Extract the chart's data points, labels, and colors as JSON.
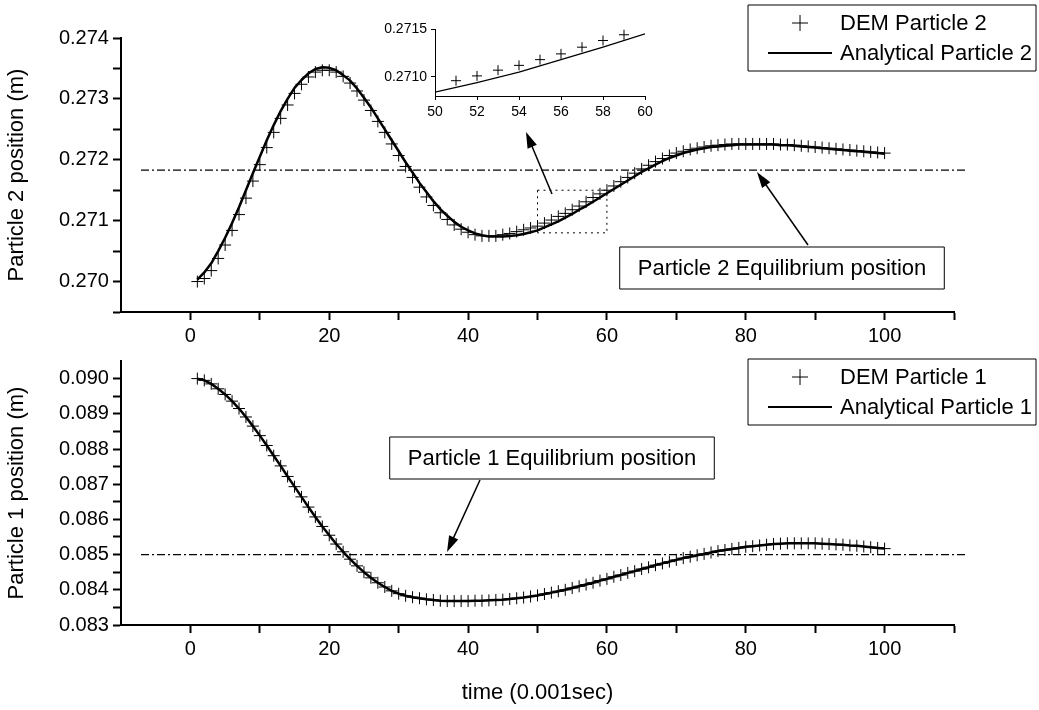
{
  "chart_data": [
    {
      "type": "scatter",
      "ylabel": "Particle 2 position (m)",
      "legend": "top right",
      "x": [
        1,
        2,
        3,
        4,
        5,
        6,
        7,
        8,
        9,
        10,
        11,
        12,
        13,
        14,
        15,
        16,
        17,
        18,
        19,
        20,
        21,
        22,
        23,
        24,
        25,
        26,
        27,
        28,
        29,
        30,
        31,
        32,
        33,
        34,
        35,
        36,
        37,
        38,
        39,
        40,
        41,
        42,
        43,
        44,
        45,
        46,
        47,
        48,
        49,
        50,
        51,
        52,
        53,
        54,
        55,
        56,
        57,
        58,
        59,
        60,
        61,
        62,
        63,
        64,
        65,
        66,
        67,
        68,
        69,
        70,
        71,
        72,
        73,
        74,
        75,
        76,
        77,
        78,
        79,
        80,
        81,
        82,
        83,
        84,
        85,
        86,
        87,
        88,
        89,
        90,
        91,
        92,
        93,
        94,
        95,
        96,
        97,
        98,
        99,
        100
      ],
      "xlim": [
        -10,
        110
      ],
      "xticks": [
        0,
        {
          "value": 10,
          "label": null
        },
        20,
        {
          "value": 30,
          "label": null
        },
        40,
        {
          "value": 50,
          "label": null
        },
        60,
        {
          "value": 70,
          "label": null
        },
        80,
        {
          "value": 90,
          "label": null
        },
        100,
        {
          "value": 110,
          "label": null
        }
      ],
      "ylim": [
        0.2695,
        0.274
      ],
      "yticks": [
        {
          "value": 0.2695,
          "label": null
        },
        {
          "value": 0.27,
          "label": "0.270"
        },
        {
          "value": 0.2705,
          "label": null
        },
        0.271,
        {
          "value": 0.2715,
          "label": null
        },
        0.272,
        {
          "value": 0.2725,
          "label": null
        },
        0.273,
        {
          "value": 0.2735,
          "label": null
        },
        0.274
      ],
      "series": [
        {
          "name": "DEM Particle 2",
          "type": "scatter",
          "marker": "cross",
          "color": "#000000",
          "values": [
            0.27,
            0.27005,
            0.27018,
            0.27038,
            0.2706,
            0.27084,
            0.2711,
            0.27137,
            0.27165,
            0.27192,
            0.2722,
            0.27245,
            0.27268,
            0.2729,
            0.27309,
            0.27324,
            0.27336,
            0.27344,
            0.27347,
            0.27347,
            0.27344,
            0.27337,
            0.27326,
            0.27313,
            0.27298,
            0.27281,
            0.27263,
            0.27245,
            0.27226,
            0.27207,
            0.27189,
            0.27171,
            0.27155,
            0.27139,
            0.27125,
            0.27113,
            0.27102,
            0.27093,
            0.27086,
            0.27081,
            0.27077,
            0.27075,
            0.27075,
            0.27075,
            0.27077,
            0.27079,
            0.27082,
            0.27085,
            0.27088,
            0.27091,
            0.27096,
            0.27101,
            0.27107,
            0.27112,
            0.27118,
            0.27124,
            0.27131,
            0.27138,
            0.27144,
            0.2715,
            0.27157,
            0.27164,
            0.27171,
            0.27178,
            0.27185,
            0.27191,
            0.27197,
            0.27202,
            0.27207,
            0.27211,
            0.27214,
            0.27217,
            0.27219,
            0.27221,
            0.27223,
            0.27224,
            0.27225,
            0.27226,
            0.27226,
            0.27226,
            0.27226,
            0.27226,
            0.27226,
            0.27226,
            0.27225,
            0.27225,
            0.27224,
            0.27223,
            0.27222,
            0.27221,
            0.2722,
            0.27219,
            0.27218,
            0.27217,
            0.27216,
            0.27215,
            0.27214,
            0.27213,
            0.27212,
            0.27211
          ]
        },
        {
          "name": "Analytical Particle 2",
          "type": "line",
          "line_style": "solid",
          "color": "#000000",
          "values": [
            0.27003,
            0.27015,
            0.2703,
            0.2705,
            0.27072,
            0.27096,
            0.27122,
            0.2715,
            0.27178,
            0.27205,
            0.27232,
            0.27257,
            0.2728,
            0.273,
            0.27318,
            0.27331,
            0.27342,
            0.27349,
            0.27352,
            0.27351,
            0.27347,
            0.27339,
            0.2733,
            0.27317,
            0.27302,
            0.27286,
            0.27268,
            0.2725,
            0.27232,
            0.27214,
            0.27196,
            0.27179,
            0.27162,
            0.27147,
            0.27132,
            0.27119,
            0.27108,
            0.27098,
            0.2709,
            0.27084,
            0.27079,
            0.27076,
            0.27074,
            0.27074,
            0.27074,
            0.27075,
            0.27076,
            0.27078,
            0.27081,
            0.27084,
            0.27089,
            0.27094,
            0.27099,
            0.27105,
            0.27111,
            0.27118,
            0.27124,
            0.27131,
            0.27138,
            0.27145,
            0.27152,
            0.27159,
            0.27166,
            0.27173,
            0.2718,
            0.27186,
            0.27192,
            0.27198,
            0.27203,
            0.27207,
            0.27211,
            0.27214,
            0.27217,
            0.27219,
            0.27221,
            0.27222,
            0.27223,
            0.27224,
            0.27225,
            0.27225,
            0.27225,
            0.27225,
            0.27225,
            0.27225,
            0.27224,
            0.27224,
            0.27223,
            0.27222,
            0.27221,
            0.2722,
            0.27219,
            0.27218,
            0.27217,
            0.27216,
            0.27215,
            0.27214,
            0.27213,
            0.27212,
            0.27211,
            0.2721
          ]
        }
      ],
      "ref_lines": [
        {
          "axis": "y",
          "value": 0.27183,
          "line_style": "dashed",
          "color": "#000000"
        }
      ],
      "annotations": [
        "Particle 2 Equilibrium position"
      ]
    },
    {
      "type": "scatter",
      "xlim": [
        50,
        60
      ],
      "xticks": [
        50,
        52,
        54,
        56,
        58,
        60
      ],
      "ylim": [
        0.2708,
        0.2715
      ],
      "yticks": [
        {
          "value": 0.271,
          "label": "0.2710"
        },
        0.2715
      ],
      "series": [
        {
          "type": "scatter",
          "marker": "cross",
          "color": "#000000",
          "x": [
            51,
            52,
            53,
            54,
            55,
            56,
            57,
            58,
            59
          ],
          "values": [
            0.27096,
            0.27101,
            0.27107,
            0.27112,
            0.27118,
            0.27124,
            0.27131,
            0.27138,
            0.27144
          ]
        },
        {
          "type": "line",
          "line_style": "solid",
          "color": "#000000",
          "x": [
            50,
            52,
            54,
            56,
            58,
            60
          ],
          "values": [
            0.27084,
            0.27094,
            0.27105,
            0.27118,
            0.27131,
            0.27145
          ]
        }
      ]
    },
    {
      "type": "scatter",
      "ylabel": "Particle 1 position (m)",
      "xlabel": "time (0.001sec)",
      "legend": "top right",
      "x": [
        1,
        2,
        3,
        4,
        5,
        6,
        7,
        8,
        9,
        10,
        11,
        12,
        13,
        14,
        15,
        16,
        17,
        18,
        19,
        20,
        21,
        22,
        23,
        24,
        25,
        26,
        27,
        28,
        29,
        30,
        31,
        32,
        33,
        34,
        35,
        36,
        37,
        38,
        39,
        40,
        41,
        42,
        43,
        44,
        45,
        46,
        47,
        48,
        49,
        50,
        51,
        52,
        53,
        54,
        55,
        56,
        57,
        58,
        59,
        60,
        61,
        62,
        63,
        64,
        65,
        66,
        67,
        68,
        69,
        70,
        71,
        72,
        73,
        74,
        75,
        76,
        77,
        78,
        79,
        80,
        81,
        82,
        83,
        84,
        85,
        86,
        87,
        88,
        89,
        90,
        91,
        92,
        93,
        94,
        95,
        96,
        97,
        98,
        99,
        100
      ],
      "xlim": [
        -10,
        110
      ],
      "xticks": [
        0,
        {
          "value": 10,
          "label": null
        },
        20,
        {
          "value": 30,
          "label": null
        },
        40,
        {
          "value": 50,
          "label": null
        },
        60,
        {
          "value": 70,
          "label": null
        },
        80,
        {
          "value": 90,
          "label": null
        },
        100,
        {
          "value": 110,
          "label": null
        }
      ],
      "ylim": [
        0.083,
        0.0905
      ],
      "yticks": [
        0.083,
        {
          "value": 0.0835,
          "label": null
        },
        0.084,
        {
          "value": 0.0845,
          "label": null
        },
        0.085,
        {
          "value": 0.0855,
          "label": null
        },
        0.086,
        {
          "value": 0.0865,
          "label": null
        },
        0.087,
        {
          "value": 0.0875,
          "label": null
        },
        0.088,
        {
          "value": 0.0885,
          "label": null
        },
        0.089,
        {
          "value": 0.0895,
          "label": null
        },
        {
          "value": 0.09,
          "label": "0.090"
        }
      ],
      "series": [
        {
          "name": "DEM Particle 1",
          "type": "scatter",
          "marker": "cross",
          "color": "#000000",
          "values": [
            0.09,
            0.08995,
            0.08985,
            0.08971,
            0.08955,
            0.08936,
            0.08915,
            0.08891,
            0.08865,
            0.08838,
            0.0881,
            0.08781,
            0.08752,
            0.08722,
            0.08693,
            0.08664,
            0.08635,
            0.08607,
            0.0858,
            0.08555,
            0.0853,
            0.08508,
            0.08487,
            0.08468,
            0.0845,
            0.08434,
            0.0842,
            0.08408,
            0.08397,
            0.08389,
            0.08383,
            0.08379,
            0.08376,
            0.08373,
            0.08371,
            0.08369,
            0.08368,
            0.08368,
            0.08368,
            0.08368,
            0.08369,
            0.08369,
            0.0837,
            0.08371,
            0.08372,
            0.08374,
            0.08376,
            0.08378,
            0.08381,
            0.08384,
            0.08388,
            0.08392,
            0.08396,
            0.084,
            0.08405,
            0.0841,
            0.08415,
            0.0842,
            0.08426,
            0.08431,
            0.08437,
            0.08442,
            0.08448,
            0.08453,
            0.08459,
            0.08464,
            0.0847,
            0.08475,
            0.0848,
            0.08485,
            0.0849,
            0.08494,
            0.08498,
            0.08502,
            0.08506,
            0.0851,
            0.08513,
            0.08516,
            0.08519,
            0.08522,
            0.08524,
            0.08526,
            0.08528,
            0.0853,
            0.08531,
            0.08532,
            0.08532,
            0.08532,
            0.08532,
            0.08532,
            0.08531,
            0.0853,
            0.08529,
            0.08528,
            0.08526,
            0.08525,
            0.08523,
            0.08521,
            0.08519,
            0.08517
          ]
        },
        {
          "name": "Analytical Particle 1",
          "type": "line",
          "line_style": "solid",
          "color": "#000000",
          "values": [
            0.09,
            0.08995,
            0.08985,
            0.08971,
            0.08955,
            0.08936,
            0.08915,
            0.08891,
            0.08865,
            0.08838,
            0.0881,
            0.08781,
            0.08752,
            0.08722,
            0.08693,
            0.08664,
            0.08635,
            0.08607,
            0.0858,
            0.08555,
            0.0853,
            0.08508,
            0.08487,
            0.08468,
            0.0845,
            0.08434,
            0.0842,
            0.08408,
            0.08397,
            0.08389,
            0.08383,
            0.08379,
            0.08376,
            0.08373,
            0.08371,
            0.08369,
            0.08368,
            0.08368,
            0.08368,
            0.08368,
            0.08369,
            0.08369,
            0.0837,
            0.08371,
            0.08372,
            0.08374,
            0.08376,
            0.08378,
            0.08381,
            0.08384,
            0.08388,
            0.08392,
            0.08396,
            0.084,
            0.08405,
            0.0841,
            0.08415,
            0.0842,
            0.08426,
            0.08431,
            0.08437,
            0.08442,
            0.08448,
            0.08453,
            0.08459,
            0.08464,
            0.0847,
            0.08475,
            0.0848,
            0.08485,
            0.0849,
            0.08494,
            0.08498,
            0.08502,
            0.08506,
            0.0851,
            0.08513,
            0.08516,
            0.08519,
            0.08522,
            0.08524,
            0.08526,
            0.08528,
            0.0853,
            0.08531,
            0.08532,
            0.08532,
            0.08532,
            0.08532,
            0.08532,
            0.08531,
            0.0853,
            0.08529,
            0.08528,
            0.08526,
            0.08525,
            0.08523,
            0.08521,
            0.08519,
            0.08517
          ]
        }
      ],
      "ref_lines": [
        {
          "axis": "y",
          "value": 0.085,
          "line_style": "dashed",
          "color": "#000000"
        }
      ],
      "annotations": [
        "Particle 1 Equilibrium position"
      ]
    }
  ]
}
